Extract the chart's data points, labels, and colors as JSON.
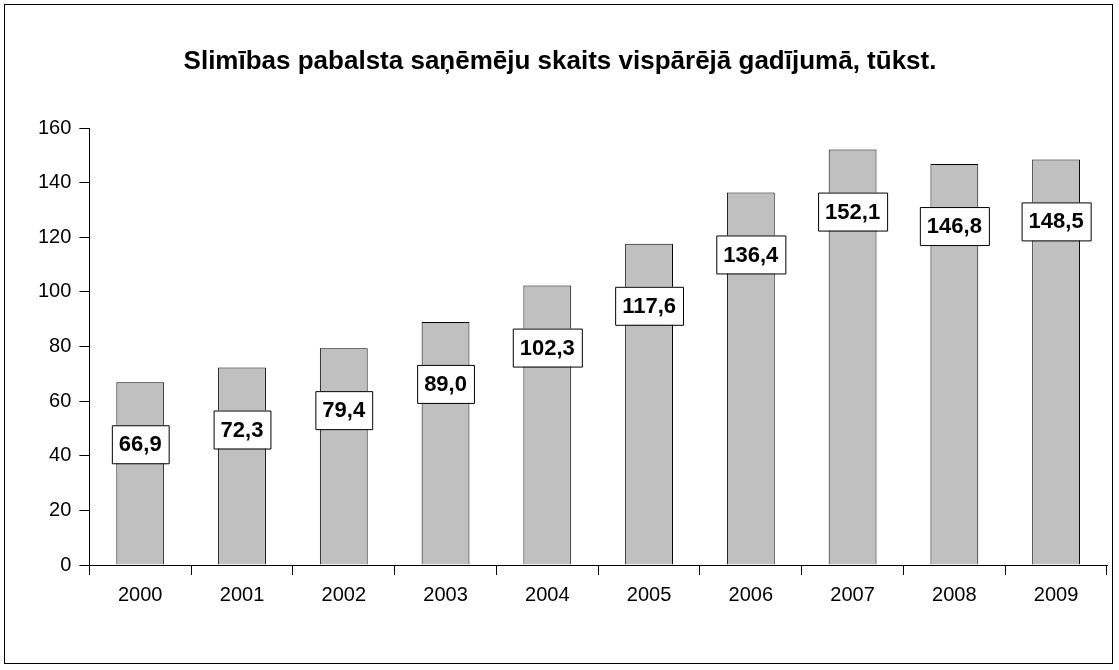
{
  "chart_data": {
    "type": "bar",
    "title": "Slimības pabalsta saņēmēju skaits vispārējā gadījumā, tūkst.",
    "categories": [
      "2000",
      "2001",
      "2002",
      "2003",
      "2004",
      "2005",
      "2006",
      "2007",
      "2008",
      "2009"
    ],
    "values": [
      66.9,
      72.3,
      79.4,
      89.0,
      102.3,
      117.6,
      136.4,
      152.1,
      146.8,
      148.5
    ],
    "value_labels": [
      "66,9",
      "72,3",
      "79,4",
      "89,0",
      "102,3",
      "117,6",
      "136,4",
      "152,1",
      "146,8",
      "148,5"
    ],
    "color": "#c0c0c0",
    "ylim": [
      0,
      160
    ],
    "yticks": [
      0,
      20,
      40,
      60,
      80,
      100,
      120,
      140,
      160
    ],
    "grid": false,
    "legend": false
  }
}
